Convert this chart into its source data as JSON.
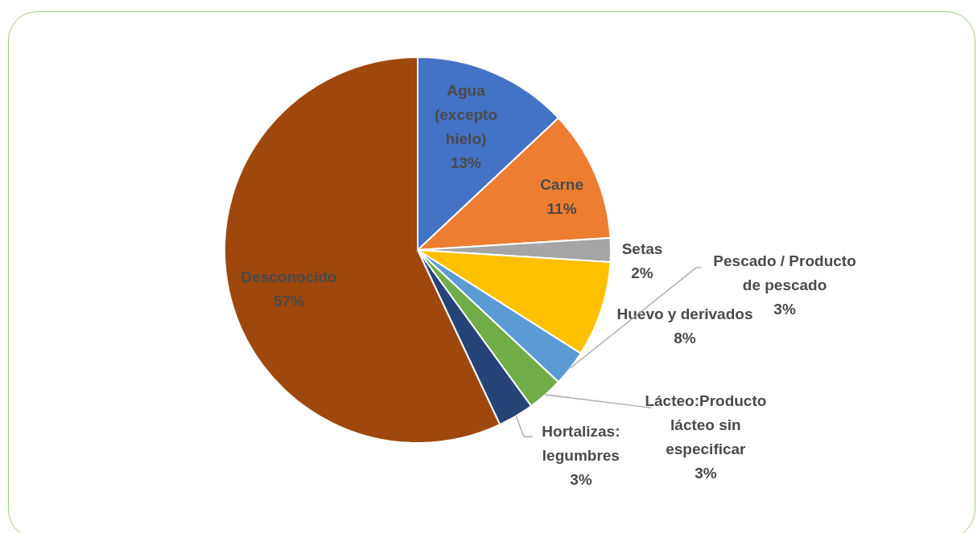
{
  "chart_data": {
    "type": "pie",
    "categories": [
      "Agua (excepto hielo)",
      "Carne",
      "Setas",
      "Huevo y derivados",
      "Pescado / Producto de pescado",
      "Lácteo:Producto lácteo sin especificar",
      "Hortalizas: legumbres",
      "Desconocido"
    ],
    "values": [
      13,
      11,
      2,
      8,
      3,
      3,
      3,
      57
    ],
    "colors": [
      "#4472c4",
      "#ed7d31",
      "#a5a5a5",
      "#ffc000",
      "#5b9bd5",
      "#70ad47",
      "#264478",
      "#9e480e"
    ],
    "value_labels": [
      "13%",
      "11%",
      "2%",
      "8%",
      "3%",
      "3%",
      "3%",
      "57%"
    ]
  }
}
